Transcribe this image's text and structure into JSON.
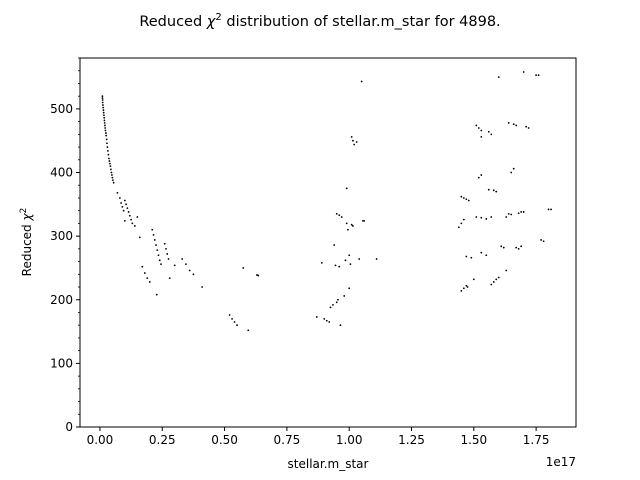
{
  "chart_data": {
    "type": "scatter",
    "title_prefix": "Reduced ",
    "title_symbol": "χ",
    "title_power": "2",
    "title_suffix": " distribution of stellar.m_star for 4898.",
    "xlabel": "stellar.m_star",
    "ylabel_prefix": "Reduced ",
    "ylabel_symbol": "χ",
    "ylabel_power": "2",
    "x_offset_label": "1e17",
    "x_scale": 1e+17,
    "xlim": [
      -0.08,
      1.91
    ],
    "ylim": [
      0,
      580
    ],
    "x_ticks": [
      0.0,
      0.25,
      0.5,
      0.75,
      1.0,
      1.25,
      1.5,
      1.75
    ],
    "x_tick_labels": [
      "0.00",
      "0.25",
      "0.50",
      "0.75",
      "1.00",
      "1.25",
      "1.50",
      "1.75"
    ],
    "y_ticks": [
      0,
      100,
      200,
      300,
      400,
      500
    ],
    "y_tick_labels": [
      "0",
      "100",
      "200",
      "300",
      "400",
      "500"
    ],
    "y_minor_step": 20,
    "marker_color": "#000000",
    "grid": false,
    "legend": "none",
    "points": [
      [
        0.01,
        520
      ],
      [
        0.01,
        517
      ],
      [
        0.011,
        514
      ],
      [
        0.011,
        510
      ],
      [
        0.012,
        506
      ],
      [
        0.013,
        502
      ],
      [
        0.014,
        498
      ],
      [
        0.015,
        494
      ],
      [
        0.016,
        490
      ],
      [
        0.017,
        486
      ],
      [
        0.018,
        482
      ],
      [
        0.019,
        478
      ],
      [
        0.02,
        474
      ],
      [
        0.021,
        470
      ],
      [
        0.022,
        466
      ],
      [
        0.024,
        462
      ],
      [
        0.025,
        458
      ],
      [
        0.027,
        452
      ],
      [
        0.028,
        446
      ],
      [
        0.03,
        440
      ],
      [
        0.032,
        434
      ],
      [
        0.034,
        428
      ],
      [
        0.036,
        422
      ],
      [
        0.038,
        418
      ],
      [
        0.04,
        414
      ],
      [
        0.042,
        410
      ],
      [
        0.044,
        405
      ],
      [
        0.046,
        400
      ],
      [
        0.048,
        396
      ],
      [
        0.05,
        392
      ],
      [
        0.052,
        388
      ],
      [
        0.055,
        384
      ],
      [
        0.07,
        368
      ],
      [
        0.08,
        360
      ],
      [
        0.085,
        352
      ],
      [
        0.09,
        346
      ],
      [
        0.095,
        340
      ],
      [
        0.1,
        356
      ],
      [
        0.105,
        350
      ],
      [
        0.11,
        344
      ],
      [
        0.115,
        338
      ],
      [
        0.12,
        332
      ],
      [
        0.125,
        326
      ],
      [
        0.13,
        320
      ],
      [
        0.1,
        324
      ],
      [
        0.14,
        316
      ],
      [
        0.15,
        330
      ],
      [
        0.16,
        298
      ],
      [
        0.17,
        252
      ],
      [
        0.18,
        242
      ],
      [
        0.19,
        234
      ],
      [
        0.2,
        228
      ],
      [
        0.21,
        310
      ],
      [
        0.215,
        302
      ],
      [
        0.22,
        294
      ],
      [
        0.225,
        286
      ],
      [
        0.23,
        278
      ],
      [
        0.235,
        270
      ],
      [
        0.24,
        262
      ],
      [
        0.245,
        256
      ],
      [
        0.228,
        208
      ],
      [
        0.26,
        288
      ],
      [
        0.265,
        280
      ],
      [
        0.27,
        272
      ],
      [
        0.275,
        264
      ],
      [
        0.28,
        234
      ],
      [
        0.3,
        254
      ],
      [
        0.33,
        264
      ],
      [
        0.345,
        256
      ],
      [
        0.36,
        246
      ],
      [
        0.375,
        240
      ],
      [
        0.41,
        220
      ],
      [
        0.52,
        176
      ],
      [
        0.53,
        170
      ],
      [
        0.54,
        165
      ],
      [
        0.55,
        160
      ],
      [
        0.575,
        250
      ],
      [
        0.595,
        152
      ],
      [
        0.63,
        239
      ],
      [
        0.635,
        238
      ],
      [
        0.87,
        173
      ],
      [
        0.89,
        258
      ],
      [
        0.9,
        170
      ],
      [
        0.91,
        167
      ],
      [
        0.92,
        165
      ],
      [
        0.925,
        188
      ],
      [
        0.935,
        192
      ],
      [
        0.94,
        286
      ],
      [
        0.945,
        254
      ],
      [
        0.95,
        196
      ],
      [
        0.955,
        200
      ],
      [
        0.95,
        335
      ],
      [
        0.96,
        333
      ],
      [
        0.97,
        330
      ],
      [
        0.96,
        252
      ],
      [
        0.965,
        160
      ],
      [
        0.98,
        206
      ],
      [
        0.985,
        262
      ],
      [
        0.99,
        320
      ],
      [
        0.995,
        310
      ],
      [
        0.99,
        375
      ],
      [
        1.0,
        270
      ],
      [
        1.005,
        256
      ],
      [
        1.0,
        218
      ],
      [
        1.01,
        456
      ],
      [
        1.015,
        450
      ],
      [
        1.02,
        444
      ],
      [
        1.01,
        318
      ],
      [
        1.015,
        316
      ],
      [
        1.03,
        448
      ],
      [
        1.04,
        264
      ],
      [
        1.05,
        543
      ],
      [
        1.055,
        324
      ],
      [
        1.06,
        324
      ],
      [
        1.11,
        264
      ],
      [
        1.44,
        314
      ],
      [
        1.45,
        320
      ],
      [
        1.46,
        326
      ],
      [
        1.45,
        214
      ],
      [
        1.46,
        218
      ],
      [
        1.47,
        222
      ],
      [
        1.475,
        220
      ],
      [
        1.45,
        362
      ],
      [
        1.46,
        360
      ],
      [
        1.47,
        358
      ],
      [
        1.48,
        356
      ],
      [
        1.47,
        268
      ],
      [
        1.49,
        266
      ],
      [
        1.5,
        232
      ],
      [
        1.51,
        474
      ],
      [
        1.52,
        470
      ],
      [
        1.53,
        466
      ],
      [
        1.52,
        392
      ],
      [
        1.53,
        396
      ],
      [
        1.51,
        330
      ],
      [
        1.53,
        329
      ],
      [
        1.55,
        327
      ],
      [
        1.57,
        330
      ],
      [
        1.53,
        274
      ],
      [
        1.55,
        270
      ],
      [
        1.53,
        456
      ],
      [
        1.56,
        464
      ],
      [
        1.57,
        460
      ],
      [
        1.56,
        373
      ],
      [
        1.58,
        372
      ],
      [
        1.59,
        370
      ],
      [
        1.57,
        224
      ],
      [
        1.58,
        228
      ],
      [
        1.59,
        232
      ],
      [
        1.6,
        235
      ],
      [
        1.6,
        550
      ],
      [
        1.61,
        284
      ],
      [
        1.62,
        282
      ],
      [
        1.63,
        330
      ],
      [
        1.64,
        335
      ],
      [
        1.65,
        334
      ],
      [
        1.63,
        246
      ],
      [
        1.64,
        478
      ],
      [
        1.66,
        476
      ],
      [
        1.67,
        474
      ],
      [
        1.65,
        400
      ],
      [
        1.66,
        406
      ],
      [
        1.67,
        282
      ],
      [
        1.68,
        280
      ],
      [
        1.69,
        284
      ],
      [
        1.68,
        336
      ],
      [
        1.69,
        338
      ],
      [
        1.7,
        338
      ],
      [
        1.7,
        558
      ],
      [
        1.71,
        472
      ],
      [
        1.72,
        470
      ],
      [
        1.75,
        553
      ],
      [
        1.76,
        553
      ],
      [
        1.77,
        294
      ],
      [
        1.78,
        292
      ],
      [
        1.8,
        342
      ],
      [
        1.81,
        342
      ]
    ]
  }
}
